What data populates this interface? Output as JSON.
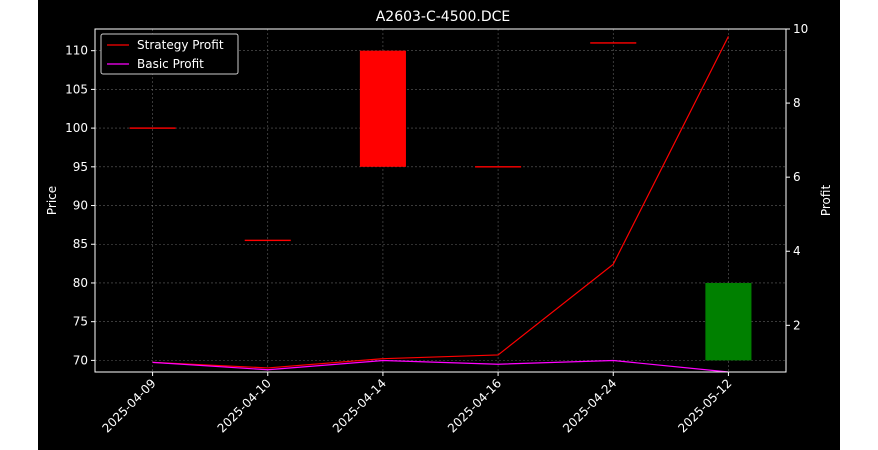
{
  "chart_data": {
    "type": "candlestick_with_profit_lines",
    "title": "A2603-C-4500.DCE",
    "xlabel": "",
    "ylabel_left": "Price",
    "ylabel_right": "Profit",
    "categories": [
      "2025-04-09",
      "2025-04-10",
      "2025-04-14",
      "2025-04-16",
      "2025-04-24",
      "2025-05-12"
    ],
    "ylim_left": [
      68.5,
      112.8
    ],
    "yticks_left": [
      70,
      75,
      80,
      85,
      90,
      95,
      100,
      105,
      110
    ],
    "ylim_right": [
      0.74,
      10.0
    ],
    "yticks_right": [
      2,
      4,
      6,
      8,
      10
    ],
    "grid": true,
    "legend_position": "top-left",
    "candles": [
      {
        "date": "2025-04-09",
        "open": 100.0,
        "close": 100.0,
        "color": "#ff0000"
      },
      {
        "date": "2025-04-10",
        "open": 85.5,
        "close": 85.5,
        "color": "#ff0000"
      },
      {
        "date": "2025-04-14",
        "open": 95.0,
        "close": 110.0,
        "color": "#ff0000"
      },
      {
        "date": "2025-04-16",
        "open": 95.0,
        "close": 95.0,
        "color": "#ff0000"
      },
      {
        "date": "2025-04-24",
        "open": 111.0,
        "close": 111.0,
        "color": "#ff0000"
      },
      {
        "date": "2025-05-12",
        "open": 80.0,
        "close": 70.0,
        "color": "#008000"
      }
    ],
    "series": [
      {
        "name": "Strategy Profit",
        "color": "#ff0000",
        "axis": "right",
        "values": [
          1.0,
          0.85,
          1.1,
          1.2,
          3.65,
          9.8
        ]
      },
      {
        "name": "Basic Profit",
        "color": "#ff00ff",
        "axis": "right",
        "values": [
          1.0,
          0.8,
          1.05,
          0.95,
          1.05,
          0.74
        ]
      }
    ]
  }
}
